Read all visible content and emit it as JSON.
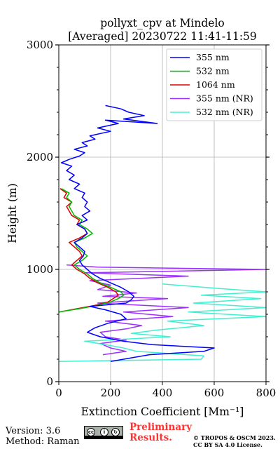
{
  "chart_data": {
    "type": "line",
    "title": "pollyxt_cpv at Mindelo",
    "subtitle": "[Averaged] 20230722 11:41-11:59",
    "xlabel": "Extinction Coefficient [Mm⁻¹]",
    "ylabel": "Height (m)",
    "xlim": [
      0,
      800
    ],
    "ylim": [
      0,
      3000
    ],
    "xticks": [
      "0",
      "200",
      "400",
      "600",
      "800"
    ],
    "yticks": [
      "0",
      "1000",
      "2000",
      "3000"
    ],
    "grid": true,
    "legend_position": "top-right",
    "series": [
      {
        "name": "355 nm",
        "color": "#0000ff",
        "points": [
          [
            200,
            180
          ],
          [
            350,
            240
          ],
          [
            560,
            270
          ],
          [
            600,
            300
          ],
          [
            360,
            330
          ],
          [
            250,
            360
          ],
          [
            160,
            400
          ],
          [
            110,
            440
          ],
          [
            140,
            480
          ],
          [
            190,
            520
          ],
          [
            260,
            560
          ],
          [
            240,
            600
          ],
          [
            180,
            640
          ],
          [
            120,
            670
          ],
          [
            260,
            700
          ],
          [
            280,
            730
          ],
          [
            290,
            760
          ],
          [
            270,
            800
          ],
          [
            240,
            840
          ],
          [
            200,
            880
          ],
          [
            160,
            920
          ],
          [
            130,
            960
          ],
          [
            110,
            1000
          ],
          [
            90,
            1040
          ],
          [
            80,
            1080
          ],
          [
            95,
            1120
          ],
          [
            100,
            1160
          ],
          [
            80,
            1200
          ],
          [
            60,
            1240
          ],
          [
            90,
            1280
          ],
          [
            110,
            1320
          ],
          [
            100,
            1360
          ],
          [
            70,
            1400
          ],
          [
            110,
            1440
          ],
          [
            90,
            1480
          ],
          [
            120,
            1520
          ],
          [
            100,
            1560
          ],
          [
            110,
            1600
          ],
          [
            90,
            1640
          ],
          [
            100,
            1680
          ],
          [
            60,
            1720
          ],
          [
            80,
            1760
          ],
          [
            40,
            1800
          ],
          [
            60,
            1840
          ],
          [
            30,
            1880
          ],
          [
            50,
            1920
          ],
          [
            10,
            1950
          ],
          [
            40,
            1980
          ],
          [
            80,
            2010
          ],
          [
            100,
            2040
          ],
          [
            60,
            2070
          ],
          [
            110,
            2100
          ],
          [
            90,
            2130
          ],
          [
            140,
            2160
          ],
          [
            120,
            2190
          ],
          [
            200,
            2230
          ],
          [
            150,
            2260
          ],
          [
            230,
            2300
          ],
          [
            180,
            2330
          ],
          [
            380,
            2300
          ],
          [
            250,
            2340
          ],
          [
            330,
            2370
          ],
          [
            270,
            2400
          ],
          [
            240,
            2430
          ],
          [
            180,
            2460
          ]
        ]
      },
      {
        "name": "532 nm",
        "color": "#00bb00",
        "points": [
          [
            0,
            620
          ],
          [
            80,
            650
          ],
          [
            150,
            680
          ],
          [
            200,
            710
          ],
          [
            230,
            740
          ],
          [
            250,
            770
          ],
          [
            240,
            800
          ],
          [
            200,
            840
          ],
          [
            160,
            880
          ],
          [
            130,
            920
          ],
          [
            110,
            960
          ],
          [
            80,
            1000
          ],
          [
            60,
            1040
          ],
          [
            90,
            1080
          ],
          [
            110,
            1120
          ],
          [
            90,
            1160
          ],
          [
            70,
            1200
          ],
          [
            60,
            1240
          ],
          [
            100,
            1280
          ],
          [
            130,
            1320
          ],
          [
            110,
            1360
          ],
          [
            80,
            1400
          ],
          [
            90,
            1440
          ],
          [
            60,
            1480
          ],
          [
            50,
            1520
          ],
          [
            40,
            1560
          ],
          [
            50,
            1600
          ],
          [
            30,
            1640
          ],
          [
            40,
            1680
          ],
          [
            10,
            1720
          ]
        ]
      },
      {
        "name": "1064 nm",
        "color": "#dd0000",
        "points": [
          [
            0,
            620
          ],
          [
            70,
            650
          ],
          [
            140,
            680
          ],
          [
            190,
            710
          ],
          [
            210,
            740
          ],
          [
            230,
            770
          ],
          [
            220,
            800
          ],
          [
            190,
            840
          ],
          [
            150,
            880
          ],
          [
            120,
            920
          ],
          [
            100,
            960
          ],
          [
            70,
            1000
          ],
          [
            50,
            1040
          ],
          [
            70,
            1080
          ],
          [
            90,
            1120
          ],
          [
            80,
            1160
          ],
          [
            60,
            1200
          ],
          [
            40,
            1240
          ],
          [
            80,
            1280
          ],
          [
            110,
            1320
          ],
          [
            100,
            1360
          ],
          [
            70,
            1400
          ],
          [
            80,
            1440
          ],
          [
            50,
            1480
          ],
          [
            40,
            1520
          ],
          [
            30,
            1560
          ],
          [
            50,
            1600
          ],
          [
            20,
            1640
          ],
          [
            30,
            1680
          ],
          [
            5,
            1720
          ]
        ]
      },
      {
        "name": "355 nm (NR)",
        "color": "#9b30ff",
        "points": [
          [
            170,
            240
          ],
          [
            260,
            270
          ],
          [
            200,
            300
          ],
          [
            160,
            340
          ],
          [
            260,
            370
          ],
          [
            180,
            400
          ],
          [
            160,
            440
          ],
          [
            260,
            470
          ],
          [
            320,
            500
          ],
          [
            180,
            540
          ],
          [
            440,
            580
          ],
          [
            250,
            620
          ],
          [
            500,
            660
          ],
          [
            150,
            700
          ],
          [
            420,
            740
          ],
          [
            170,
            760
          ],
          [
            300,
            790
          ],
          [
            150,
            820
          ],
          [
            200,
            860
          ],
          [
            120,
            900
          ],
          [
            500,
            940
          ],
          [
            100,
            970
          ],
          [
            800,
            1000
          ],
          [
            150,
            1020
          ],
          [
            30,
            1040
          ]
        ]
      },
      {
        "name": "532 nm (NR)",
        "color": "#40f0d0",
        "points": [
          [
            0,
            180
          ],
          [
            550,
            200
          ],
          [
            560,
            230
          ],
          [
            430,
            250
          ],
          [
            300,
            270
          ],
          [
            250,
            300
          ],
          [
            180,
            330
          ],
          [
            100,
            360
          ],
          [
            430,
            400
          ],
          [
            280,
            430
          ],
          [
            380,
            460
          ],
          [
            560,
            500
          ],
          [
            420,
            540
          ],
          [
            800,
            580
          ],
          [
            500,
            620
          ],
          [
            800,
            660
          ],
          [
            520,
            700
          ],
          [
            780,
            740
          ],
          [
            550,
            770
          ],
          [
            800,
            800
          ],
          [
            620,
            830
          ],
          [
            400,
            870
          ]
        ]
      }
    ]
  },
  "footer": {
    "version": "Version: 3.6",
    "method": "Method: Raman",
    "preliminary": "Preliminary Results.",
    "copyright_line1": "© TROPOS & OSCM 2023.",
    "copyright_line2": "CC BY SA 4.0 License."
  }
}
